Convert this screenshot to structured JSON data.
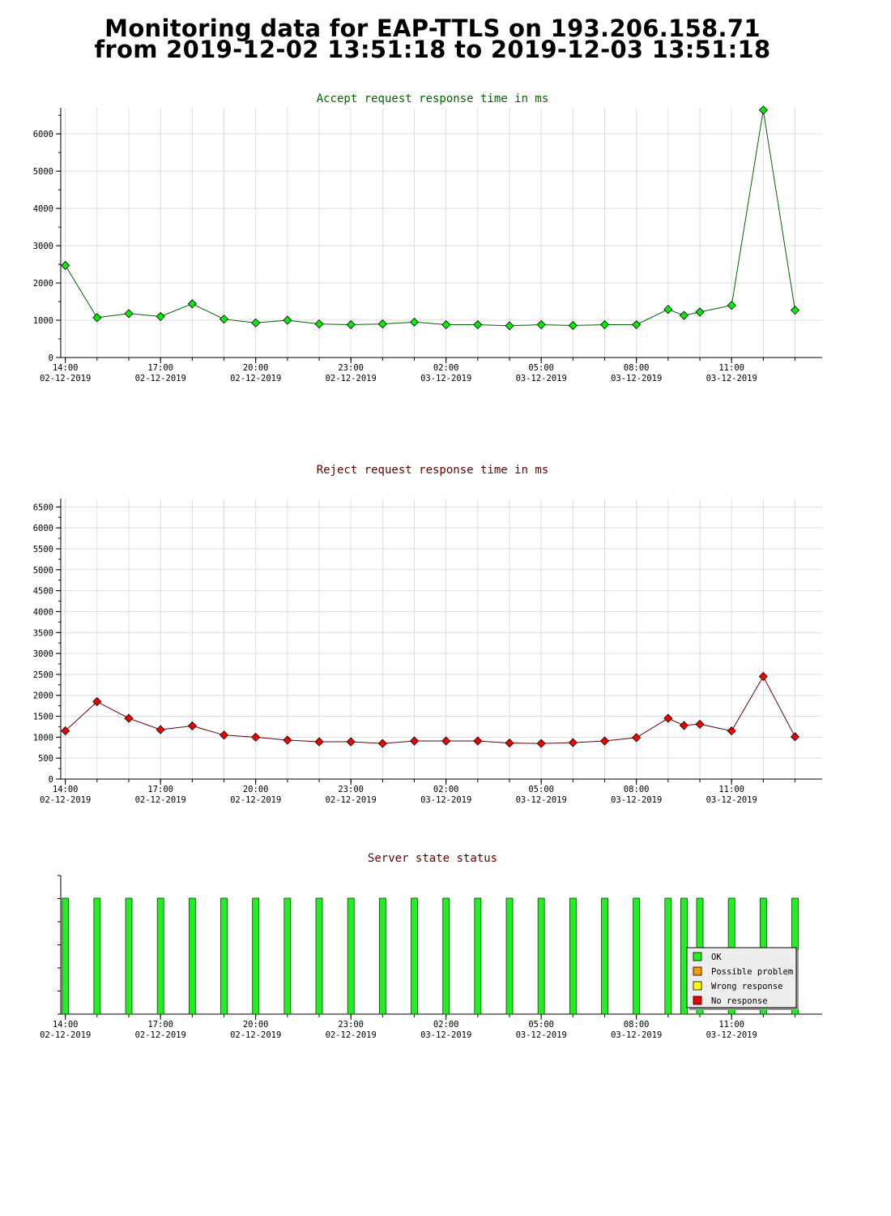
{
  "page": {
    "title_line1": "Monitoring data for EAP-TTLS on 193.206.158.71",
    "title_line2": "from 2019-12-02 13:51:18 to 2019-12-03 13:51:18"
  },
  "colors": {
    "accept_title": "#006400",
    "reject_title": "#640000",
    "status_title": "#640000",
    "accept_marker": "#00ee00",
    "accept_line": "#006400",
    "reject_marker": "#ee0000",
    "reject_line": "#640000",
    "ok": "#22ee22",
    "possible_problem": "#ff9900",
    "wrong_response": "#ffff00",
    "no_response": "#ee0000",
    "grid": "#dddddd"
  },
  "x_axis": {
    "tick_labels": [
      {
        "time": "14:00",
        "date": "02-12-2019"
      },
      {
        "time": "17:00",
        "date": "02-12-2019"
      },
      {
        "time": "20:00",
        "date": "02-12-2019"
      },
      {
        "time": "23:00",
        "date": "02-12-2019"
      },
      {
        "time": "02:00",
        "date": "03-12-2019"
      },
      {
        "time": "05:00",
        "date": "03-12-2019"
      },
      {
        "time": "08:00",
        "date": "03-12-2019"
      },
      {
        "time": "11:00",
        "date": "03-12-2019"
      }
    ]
  },
  "chart_data": [
    {
      "type": "line",
      "title": "Accept request response time in ms",
      "x": [
        "2019-12-02 14:00",
        "2019-12-02 15:00",
        "2019-12-02 16:00",
        "2019-12-02 17:00",
        "2019-12-02 18:00",
        "2019-12-02 19:00",
        "2019-12-02 20:00",
        "2019-12-02 21:00",
        "2019-12-02 22:00",
        "2019-12-02 23:00",
        "2019-12-03 00:00",
        "2019-12-03 01:00",
        "2019-12-03 02:00",
        "2019-12-03 03:00",
        "2019-12-03 04:00",
        "2019-12-03 05:00",
        "2019-12-03 06:00",
        "2019-12-03 07:00",
        "2019-12-03 08:00",
        "2019-12-03 09:00",
        "2019-12-03 09:30",
        "2019-12-03 10:00",
        "2019-12-03 11:00",
        "2019-12-03 12:00",
        "2019-12-03 13:00"
      ],
      "values": [
        2470,
        1070,
        1180,
        1100,
        1440,
        1030,
        930,
        1000,
        900,
        880,
        900,
        950,
        880,
        880,
        850,
        880,
        860,
        880,
        880,
        1290,
        1130,
        1220,
        1400,
        6640,
        1270
      ],
      "ylim": [
        0,
        6700
      ],
      "y_ticks": [
        0,
        1000,
        2000,
        3000,
        4000,
        5000,
        6000
      ],
      "grid": true
    },
    {
      "type": "line",
      "title": "Reject request response time in ms",
      "x": [
        "2019-12-02 14:00",
        "2019-12-02 15:00",
        "2019-12-02 16:00",
        "2019-12-02 17:00",
        "2019-12-02 18:00",
        "2019-12-02 19:00",
        "2019-12-02 20:00",
        "2019-12-02 21:00",
        "2019-12-02 22:00",
        "2019-12-02 23:00",
        "2019-12-03 00:00",
        "2019-12-03 01:00",
        "2019-12-03 02:00",
        "2019-12-03 03:00",
        "2019-12-03 04:00",
        "2019-12-03 05:00",
        "2019-12-03 06:00",
        "2019-12-03 07:00",
        "2019-12-03 08:00",
        "2019-12-03 09:00",
        "2019-12-03 09:30",
        "2019-12-03 10:00",
        "2019-12-03 11:00",
        "2019-12-03 12:00",
        "2019-12-03 13:00"
      ],
      "values": [
        1150,
        1850,
        1450,
        1180,
        1270,
        1050,
        1000,
        930,
        890,
        890,
        850,
        910,
        910,
        910,
        860,
        850,
        870,
        910,
        990,
        1450,
        1280,
        1310,
        1150,
        2450,
        1010
      ],
      "ylim": [
        0,
        6700
      ],
      "y_ticks": [
        0,
        500,
        1000,
        1500,
        2000,
        2500,
        3000,
        3500,
        4000,
        4500,
        5000,
        5500,
        6000,
        6500
      ],
      "grid": true
    },
    {
      "type": "bar",
      "title": "Server state status",
      "x": [
        "2019-12-02 14:00",
        "2019-12-02 15:00",
        "2019-12-02 16:00",
        "2019-12-02 17:00",
        "2019-12-02 18:00",
        "2019-12-02 19:00",
        "2019-12-02 20:00",
        "2019-12-02 21:00",
        "2019-12-02 22:00",
        "2019-12-02 23:00",
        "2019-12-03 00:00",
        "2019-12-03 01:00",
        "2019-12-03 02:00",
        "2019-12-03 03:00",
        "2019-12-03 04:00",
        "2019-12-03 05:00",
        "2019-12-03 06:00",
        "2019-12-03 07:00",
        "2019-12-03 08:00",
        "2019-12-03 09:00",
        "2019-12-03 09:30",
        "2019-12-03 10:00",
        "2019-12-03 11:00",
        "2019-12-03 12:00",
        "2019-12-03 13:00"
      ],
      "states": [
        "OK",
        "OK",
        "OK",
        "OK",
        "OK",
        "OK",
        "OK",
        "OK",
        "OK",
        "OK",
        "OK",
        "OK",
        "OK",
        "OK",
        "OK",
        "OK",
        "OK",
        "OK",
        "OK",
        "OK",
        "OK",
        "OK",
        "OK",
        "OK",
        "OK"
      ],
      "legend": {
        "placement": "bottom-right",
        "items": [
          {
            "label": "OK",
            "color": "#22ee22"
          },
          {
            "label": "Possible problem",
            "color": "#ff9900"
          },
          {
            "label": "Wrong response",
            "color": "#ffff00"
          },
          {
            "label": "No response",
            "color": "#ee0000"
          }
        ]
      }
    }
  ]
}
